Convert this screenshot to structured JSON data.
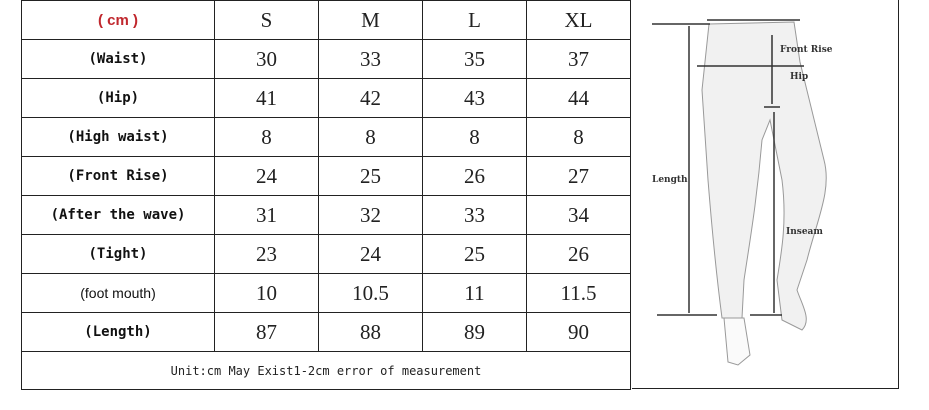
{
  "table": {
    "unit_header": "( cm )",
    "sizes": [
      "S",
      "M",
      "L",
      "XL"
    ],
    "rows": [
      {
        "label": "(Waist)",
        "values": [
          "30",
          "33",
          "35",
          "37"
        ]
      },
      {
        "label": "(Hip)",
        "values": [
          "41",
          "42",
          "43",
          "44"
        ]
      },
      {
        "label": "(High waist)",
        "values": [
          "8",
          "8",
          "8",
          "8"
        ]
      },
      {
        "label": "(Front Rise)",
        "values": [
          "24",
          "25",
          "26",
          "27"
        ]
      },
      {
        "label": "(After the wave)",
        "values": [
          "31",
          "32",
          "33",
          "34"
        ]
      },
      {
        "label": "(Tight)",
        "values": [
          "23",
          "24",
          "25",
          "26"
        ]
      },
      {
        "label": "(foot mouth)",
        "values": [
          "10",
          "10.5",
          "11",
          "11.5"
        ]
      },
      {
        "label": "(Length)",
        "values": [
          "87",
          "88",
          "89",
          "90"
        ]
      }
    ],
    "footer": "Unit:cm May Exist1-2cm error of measurement"
  },
  "diagram": {
    "labels": {
      "front_rise": "Front Rise",
      "hip": "Hip",
      "length": "Length",
      "inseam": "Inseam"
    }
  }
}
